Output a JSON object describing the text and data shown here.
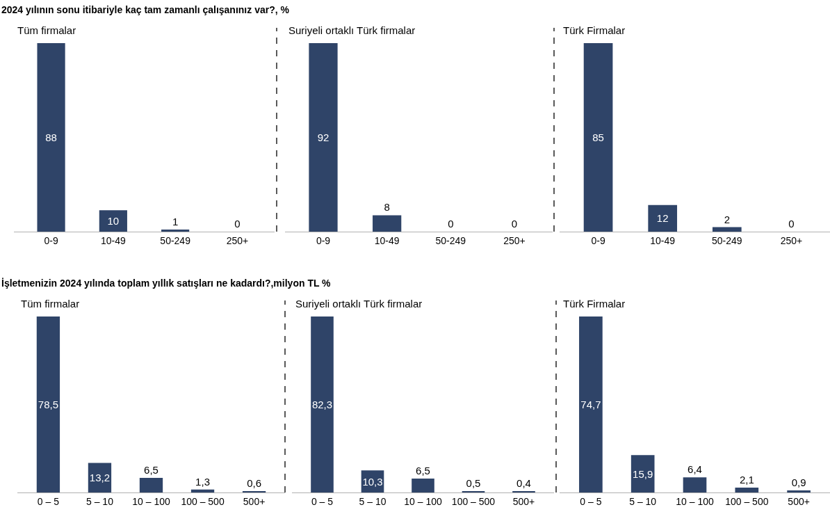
{
  "chart_data": [
    {
      "type": "bar",
      "title": "Tüm firmalar",
      "annotations": [
        "2024 yılının sonu itibariyle kaç tam zamanlı çalışanınız var?, %"
      ],
      "categories": [
        "0-9",
        "10-49",
        "50-249",
        "250+"
      ],
      "values": [
        88,
        10,
        1,
        0
      ],
      "value_labels": [
        "88",
        "10",
        "1",
        "0"
      ],
      "color": "#2f4468"
    },
    {
      "type": "bar",
      "title": "Suriyeli ortaklı Türk firmalar",
      "categories": [
        "0-9",
        "10-49",
        "50-249",
        "250+"
      ],
      "values": [
        92,
        8,
        0,
        0
      ],
      "value_labels": [
        "92",
        "8",
        "0",
        "0"
      ],
      "color": "#2f4468"
    },
    {
      "type": "bar",
      "title": "Türk Firmalar",
      "categories": [
        "0-9",
        "10-49",
        "50-249",
        "250+"
      ],
      "values": [
        85,
        12,
        2,
        0
      ],
      "value_labels": [
        "85",
        "12",
        "2",
        "0"
      ],
      "color": "#2f4468"
    },
    {
      "type": "bar",
      "title": "Tüm firmalar",
      "annotations": [
        "İşletmenizin 2024 yılında toplam yıllık satışları ne kadardı?,milyon TL %"
      ],
      "categories": [
        "0 – 5",
        "5 – 10",
        "10 – 100",
        "100 – 500",
        "500+"
      ],
      "values": [
        78.5,
        13.2,
        6.5,
        1.3,
        0.6
      ],
      "value_labels": [
        "78,5",
        "13,2",
        "6,5",
        "1,3",
        "0,6"
      ],
      "color": "#2f4468"
    },
    {
      "type": "bar",
      "title": "Suriyeli ortaklı Türk firmalar",
      "categories": [
        "0 – 5",
        "5 – 10",
        "10 – 100",
        "100 – 500",
        "500+"
      ],
      "values": [
        82.3,
        10.3,
        6.5,
        0.5,
        0.4
      ],
      "value_labels": [
        "82,3",
        "10,3",
        "6,5",
        "0,5",
        "0,4"
      ],
      "color": "#2f4468"
    },
    {
      "type": "bar",
      "title": "Türk Firmalar",
      "categories": [
        "0 – 5",
        "5 – 10",
        "10 – 100",
        "100 – 500",
        "500+"
      ],
      "values": [
        74.7,
        15.9,
        6.4,
        2.1,
        0.9
      ],
      "value_labels": [
        "74,7",
        "15,9",
        "6,4",
        "2,1",
        "0,9"
      ],
      "color": "#2f4468"
    }
  ]
}
